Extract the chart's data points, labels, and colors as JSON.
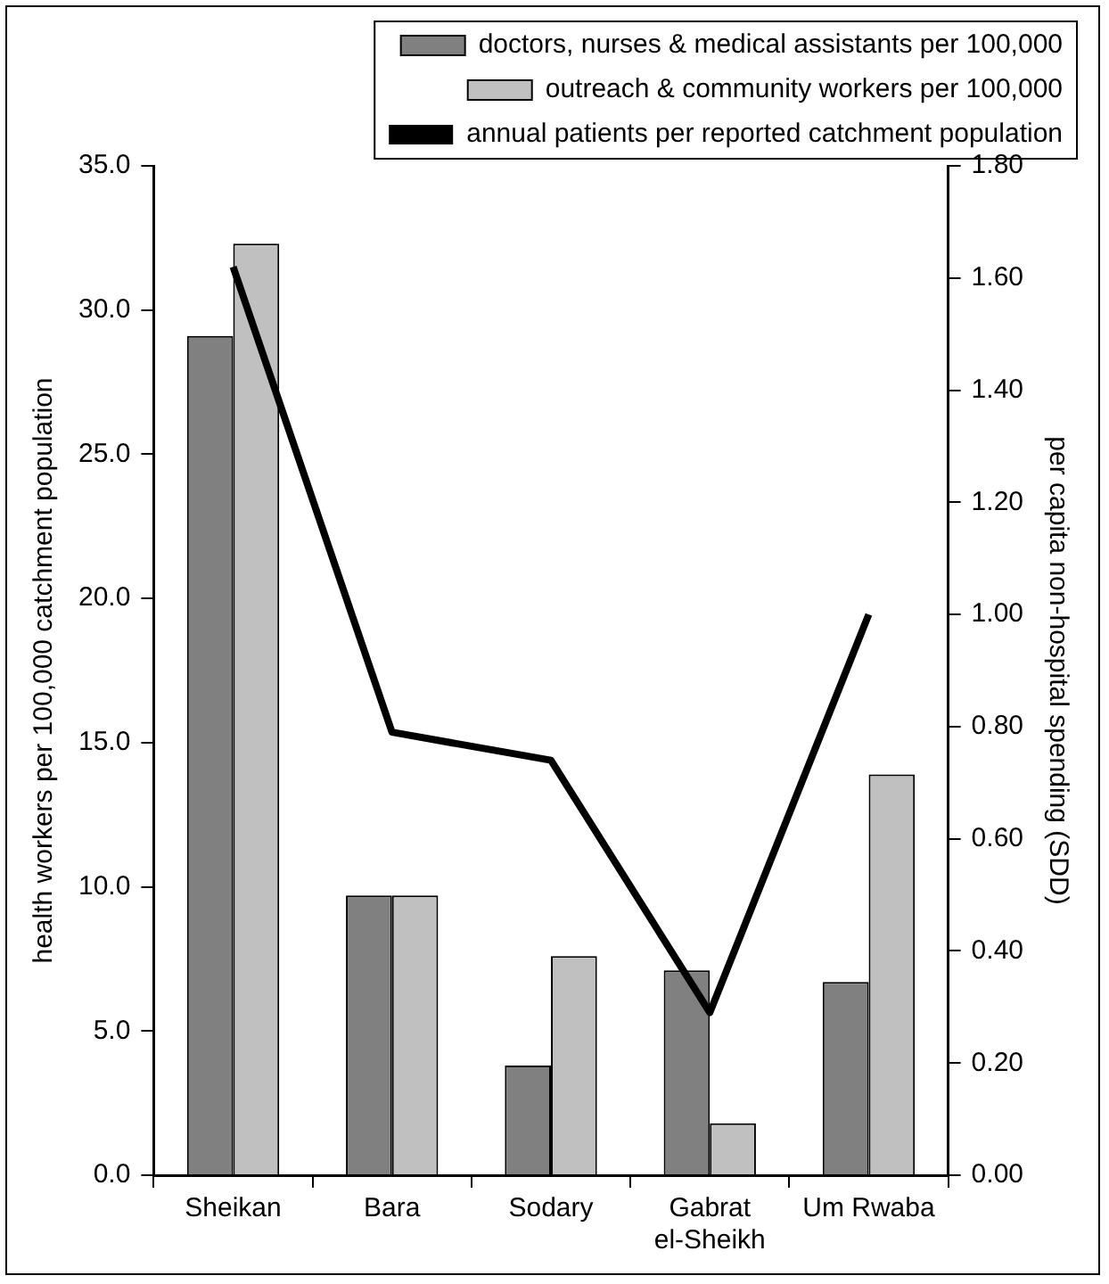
{
  "chart_data": {
    "type": "bar",
    "categories": [
      "Sheikan",
      "Bara",
      "Sodary",
      "Gabrat el-Sheikh",
      "Um Rwaba"
    ],
    "ylabel": "health workers per 100,000 catchment population",
    "y2label": "per capita non-hospital spending (SDD)",
    "series": [
      {
        "name": "doctors, nurses & medical assistants per 100,000",
        "color": "#808080",
        "values": [
          29.1,
          9.7,
          3.8,
          7.1,
          6.7
        ]
      },
      {
        "name": "outreach & community workers per 100,000",
        "color": "#c0c0c0",
        "values": [
          32.3,
          9.7,
          7.6,
          1.8,
          13.9
        ]
      },
      {
        "name": "annual patients per reported catchment population",
        "type": "line",
        "axis": "y2",
        "color": "#000000",
        "values": [
          1.62,
          0.79,
          0.74,
          0.29,
          1.0
        ]
      }
    ],
    "ylim": [
      0,
      35
    ],
    "yticks": [
      {
        "value": 0,
        "label": "0.0"
      },
      {
        "value": 5,
        "label": "5.0"
      },
      {
        "value": 10,
        "label": "10.0"
      },
      {
        "value": 15,
        "label": "15.0"
      },
      {
        "value": 20,
        "label": "20.0"
      },
      {
        "value": 25,
        "label": "25.0"
      },
      {
        "value": 30,
        "label": "30.0"
      },
      {
        "value": 35,
        "label": "35.0"
      }
    ],
    "y2lim": [
      0,
      1.8
    ],
    "y2ticks": [
      {
        "value": 0,
        "label": "0.00"
      },
      {
        "value": 0.2,
        "label": "0.20"
      },
      {
        "value": 0.4,
        "label": "0.40"
      },
      {
        "value": 0.6,
        "label": "0.60"
      },
      {
        "value": 0.8,
        "label": "0.80"
      },
      {
        "value": 1,
        "label": "1.00"
      },
      {
        "value": 1.2,
        "label": "1.20"
      },
      {
        "value": 1.4,
        "label": "1.40"
      },
      {
        "value": 1.6,
        "label": "1.60"
      },
      {
        "value": 1.8,
        "label": "1.80"
      }
    ],
    "grid": false,
    "legend": "top",
    "marker": "none",
    "line_style": "solid"
  }
}
